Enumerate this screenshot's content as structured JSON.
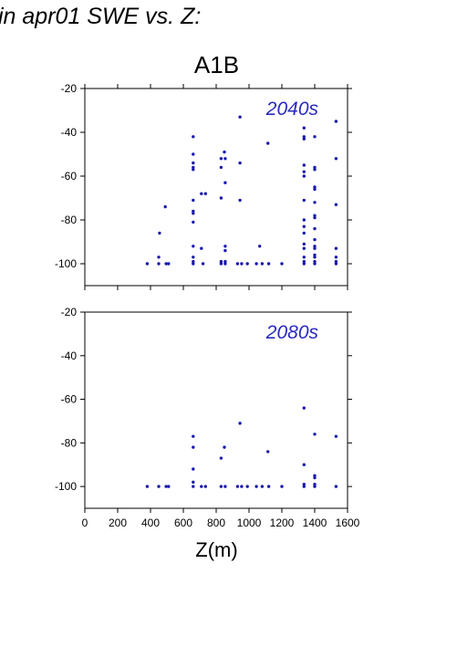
{
  "header": {
    "title": "in apr01 SWE vs. Z:",
    "scenario": "A1B"
  },
  "colors": {
    "points": "#1a1aaa",
    "panel_label": "#2a2abf",
    "axis": "#000000"
  },
  "chart_data": [
    {
      "type": "scatter",
      "label": "2040s",
      "xlim": [
        0,
        1600
      ],
      "ylim": [
        -110,
        -20
      ],
      "xticks": [
        0,
        200,
        400,
        600,
        800,
        1000,
        1200,
        1400,
        1600
      ],
      "yticks": [
        -20,
        -40,
        -60,
        -80,
        -100
      ],
      "xlabel": "Z(m)",
      "ylabel": "",
      "legend": "top-right",
      "grid": false,
      "points": [
        [
          380,
          -100
        ],
        [
          450,
          -97
        ],
        [
          450,
          -100
        ],
        [
          455,
          -86
        ],
        [
          490,
          -74
        ],
        [
          495,
          -100
        ],
        [
          510,
          -100
        ],
        [
          660,
          -42
        ],
        [
          660,
          -50
        ],
        [
          660,
          -54
        ],
        [
          660,
          -56
        ],
        [
          660,
          -57
        ],
        [
          660,
          -71
        ],
        [
          660,
          -76
        ],
        [
          660,
          -77
        ],
        [
          660,
          -81
        ],
        [
          660,
          -92
        ],
        [
          660,
          -97
        ],
        [
          660,
          -99
        ],
        [
          660,
          -100
        ],
        [
          710,
          -68
        ],
        [
          710,
          -93
        ],
        [
          720,
          -100
        ],
        [
          735,
          -68
        ],
        [
          830,
          -52
        ],
        [
          830,
          -56
        ],
        [
          830,
          -70
        ],
        [
          830,
          -99
        ],
        [
          830,
          -100
        ],
        [
          850,
          -49
        ],
        [
          855,
          -52
        ],
        [
          855,
          -63
        ],
        [
          855,
          -92
        ],
        [
          855,
          -94
        ],
        [
          855,
          -99
        ],
        [
          855,
          -100
        ],
        [
          930,
          -100
        ],
        [
          945,
          -33
        ],
        [
          945,
          -54
        ],
        [
          945,
          -71
        ],
        [
          955,
          -100
        ],
        [
          990,
          -100
        ],
        [
          1045,
          -100
        ],
        [
          1065,
          -92
        ],
        [
          1080,
          -100
        ],
        [
          1115,
          -45
        ],
        [
          1120,
          -100
        ],
        [
          1200,
          -100
        ],
        [
          1335,
          -38
        ],
        [
          1335,
          -42
        ],
        [
          1335,
          -43
        ],
        [
          1335,
          -55
        ],
        [
          1335,
          -58
        ],
        [
          1335,
          -60
        ],
        [
          1335,
          -71
        ],
        [
          1335,
          -80
        ],
        [
          1335,
          -83
        ],
        [
          1335,
          -86
        ],
        [
          1335,
          -91
        ],
        [
          1335,
          -93
        ],
        [
          1335,
          -97
        ],
        [
          1335,
          -99
        ],
        [
          1335,
          -100
        ],
        [
          1400,
          -42
        ],
        [
          1400,
          -56
        ],
        [
          1400,
          -57
        ],
        [
          1400,
          -65
        ],
        [
          1400,
          -66
        ],
        [
          1400,
          -72
        ],
        [
          1400,
          -78
        ],
        [
          1400,
          -79
        ],
        [
          1400,
          -84
        ],
        [
          1400,
          -89
        ],
        [
          1400,
          -92
        ],
        [
          1400,
          -93
        ],
        [
          1400,
          -96
        ],
        [
          1400,
          -97
        ],
        [
          1400,
          -99
        ],
        [
          1400,
          -100
        ],
        [
          1530,
          -35
        ],
        [
          1530,
          -52
        ],
        [
          1530,
          -73
        ],
        [
          1530,
          -93
        ],
        [
          1530,
          -97
        ],
        [
          1530,
          -99
        ],
        [
          1530,
          -100
        ]
      ]
    },
    {
      "type": "scatter",
      "label": "2080s",
      "xlim": [
        0,
        1600
      ],
      "ylim": [
        -110,
        -20
      ],
      "xticks": [
        0,
        200,
        400,
        600,
        800,
        1000,
        1200,
        1400,
        1600
      ],
      "yticks": [
        -20,
        -40,
        -60,
        -80,
        -100
      ],
      "xlabel": "Z(m)",
      "ylabel": "",
      "legend": "top-right",
      "grid": false,
      "points": [
        [
          380,
          -100
        ],
        [
          450,
          -100
        ],
        [
          495,
          -100
        ],
        [
          510,
          -100
        ],
        [
          660,
          -77
        ],
        [
          660,
          -82
        ],
        [
          660,
          -92
        ],
        [
          660,
          -98
        ],
        [
          660,
          -100
        ],
        [
          710,
          -100
        ],
        [
          735,
          -100
        ],
        [
          830,
          -87
        ],
        [
          830,
          -100
        ],
        [
          850,
          -82
        ],
        [
          855,
          -100
        ],
        [
          930,
          -100
        ],
        [
          945,
          -71
        ],
        [
          955,
          -100
        ],
        [
          990,
          -100
        ],
        [
          1045,
          -100
        ],
        [
          1080,
          -100
        ],
        [
          1115,
          -84
        ],
        [
          1120,
          -100
        ],
        [
          1200,
          -100
        ],
        [
          1335,
          -64
        ],
        [
          1335,
          -90
        ],
        [
          1335,
          -99
        ],
        [
          1335,
          -100
        ],
        [
          1400,
          -76
        ],
        [
          1400,
          -95
        ],
        [
          1400,
          -96
        ],
        [
          1400,
          -99
        ],
        [
          1400,
          -100
        ],
        [
          1530,
          -77
        ],
        [
          1530,
          -100
        ]
      ]
    }
  ]
}
